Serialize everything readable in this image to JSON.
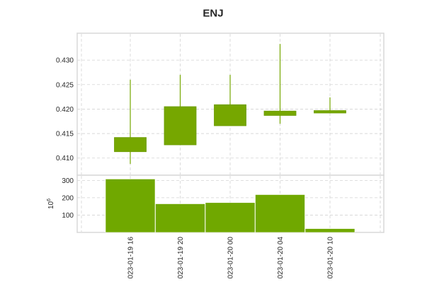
{
  "chart_data": {
    "type": "candlestick",
    "title": "ENJ",
    "x": [
      "023-01-19 16",
      "023-01-19 20",
      "023-01-20 00",
      "023-01-20 04",
      "023-01-20 10"
    ],
    "ohlc": [
      {
        "open": 0.4113,
        "high": 0.426,
        "low": 0.4088,
        "close": 0.4142
      },
      {
        "open": 0.4127,
        "high": 0.427,
        "low": 0.4127,
        "close": 0.4205
      },
      {
        "open": 0.4166,
        "high": 0.427,
        "low": 0.4166,
        "close": 0.4209
      },
      {
        "open": 0.4187,
        "high": 0.4333,
        "low": 0.417,
        "close": 0.4196
      },
      {
        "open": 0.4192,
        "high": 0.4224,
        "low": 0.4192,
        "close": 0.4197
      }
    ],
    "volume": [
      308,
      165,
      172,
      218,
      22
    ],
    "volume_exponent_label": "10",
    "volume_exponent_power": "6",
    "price_ticks": [
      "0.410",
      "0.415",
      "0.420",
      "0.425",
      "0.430"
    ],
    "price_tick_values": [
      0.41,
      0.415,
      0.42,
      0.425,
      0.43
    ],
    "volume_ticks": [
      "100",
      "200",
      "300"
    ],
    "volume_tick_values": [
      100,
      200,
      300
    ],
    "price_range": [
      0.4065,
      0.4355
    ],
    "volume_range": [
      0,
      330
    ],
    "grid": true,
    "colors": {
      "candle": "#76a700",
      "candle_edge": "#6a9a00",
      "volume": "#70a800",
      "grid": "#d3d3d3",
      "frame": "#d8d8d8"
    }
  }
}
